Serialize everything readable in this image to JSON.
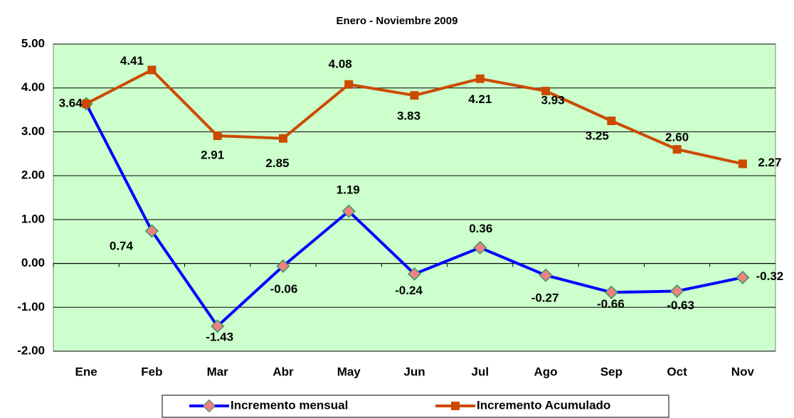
{
  "chart_data": {
    "type": "line",
    "title": "Enero - Noviembre 2009",
    "categories": [
      "Ene",
      "Feb",
      "Mar",
      "Abr",
      "May",
      "Jun",
      "Jul",
      "Ago",
      "Sep",
      "Oct",
      "Nov"
    ],
    "series": [
      {
        "name": "Incremento mensual",
        "color": "#0000ff",
        "marker_color": "#f08080",
        "values": [
          3.64,
          0.74,
          -1.43,
          -0.06,
          1.19,
          -0.24,
          0.36,
          -0.27,
          -0.66,
          -0.63,
          -0.32
        ],
        "value_labels": [
          null,
          "0.74",
          "-1.43",
          "-0.06",
          "1.19",
          "-0.24",
          "0.36",
          "-0.27",
          "-0.66",
          "-0.63",
          "-0.32"
        ]
      },
      {
        "name": "Incremento Acumulado",
        "color": "#cc4a00",
        "marker_color": "#cc4a00",
        "values": [
          3.64,
          4.41,
          2.91,
          2.85,
          4.08,
          3.83,
          4.21,
          3.93,
          3.25,
          2.6,
          2.27
        ],
        "value_labels": [
          "3.64",
          "4.41",
          "2.91",
          "2.85",
          "4.08",
          "3.83",
          "4.21",
          "3.93",
          "3.25",
          "2.60",
          "2.27"
        ]
      }
    ],
    "ylim": [
      -2,
      5
    ],
    "yticks": [
      {
        "value": -2,
        "label": "-2.00"
      },
      {
        "value": -1,
        "label": "-1.00"
      },
      {
        "value": 0,
        "label": "0.00"
      },
      {
        "value": 1,
        "label": "1.00"
      },
      {
        "value": 2,
        "label": "2.00"
      },
      {
        "value": 3,
        "label": "3.00"
      },
      {
        "value": 4,
        "label": "4.00"
      },
      {
        "value": 5,
        "label": "5.00"
      }
    ],
    "grid": true,
    "annotation": "|"
  }
}
